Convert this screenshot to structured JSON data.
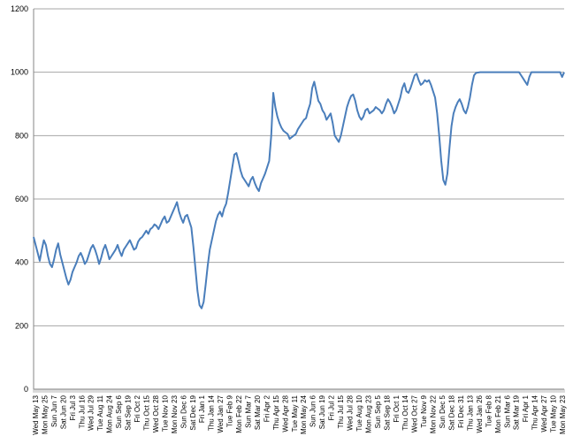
{
  "chart_data": {
    "type": "line",
    "title": "",
    "xlabel": "",
    "ylabel": "",
    "ylim": [
      0,
      1200
    ],
    "y_ticks": [
      0,
      200,
      400,
      600,
      800,
      1000,
      1200
    ],
    "grid": true,
    "legend": "none",
    "colors": {
      "line": "#4A7EBB",
      "grid": "#A6A6A6",
      "axis": "#868686"
    },
    "x_tick_labels": [
      "Wed May 13",
      "Mon May 25",
      "Sun Jun 7",
      "Sat Jun 20",
      "Fri Jul 3",
      "Thu Jul 16",
      "Wed Jul 29",
      "Tue Aug 11",
      "Mon Aug 24",
      "Sun Sep 6",
      "Sat Sep 19",
      "Fri Oct 2",
      "Thu Oct 15",
      "Wed Oct 28",
      "Tue Nov 10",
      "Mon Nov 23",
      "Sun Dec 6",
      "Sat Dec 19",
      "Fri Jan 1",
      "Thu Jan 14",
      "Wed Jan 27",
      "Tue Feb 9",
      "Mon Feb 22",
      "Sun Mar 7",
      "Sat Mar 20",
      "Fri Apr 2",
      "Thu Apr 15",
      "Wed Apr 28",
      "Tue May 11",
      "Mon May 24",
      "Sun Jun 6",
      "Sat Jun 19",
      "Fri Jul 2",
      "Thu Jul 15",
      "Wed Jul 28",
      "Tue Aug 10",
      "Mon Aug 23",
      "Sun Sep 5",
      "Sat Sep 18",
      "Fri Oct 1",
      "Thu Oct 14",
      "Wed Oct 27",
      "Tue Nov 9",
      "Mon Nov 22",
      "Sun Dec 5",
      "Sat Dec 18",
      "Fri Dec 31",
      "Thu Jan 13",
      "Wed Jan 26",
      "Tue Feb 8",
      "Mon Feb 21",
      "Sun Mar 6",
      "Sat Mar 19",
      "Fri Apr 1",
      "Thu Apr 14",
      "Wed Apr 27",
      "Tue May 10",
      "Mon May 23"
    ],
    "series": [
      {
        "values": [
          480,
          455,
          430,
          405,
          440,
          470,
          455,
          420,
          395,
          385,
          410,
          440,
          460,
          425,
          400,
          375,
          350,
          330,
          345,
          370,
          385,
          400,
          420,
          430,
          415,
          395,
          405,
          425,
          445,
          455,
          440,
          420,
          395,
          415,
          440,
          455,
          435,
          410,
          420,
          430,
          440,
          455,
          435,
          420,
          440,
          450,
          460,
          470,
          455,
          440,
          445,
          465,
          475,
          480,
          490,
          500,
          490,
          505,
          510,
          520,
          515,
          505,
          520,
          535,
          545,
          525,
          530,
          545,
          560,
          575,
          590,
          560,
          540,
          525,
          545,
          550,
          530,
          510,
          450,
          380,
          310,
          265,
          255,
          275,
          330,
          390,
          440,
          470,
          500,
          530,
          550,
          560,
          545,
          570,
          585,
          620,
          660,
          700,
          740,
          745,
          720,
          690,
          670,
          660,
          650,
          640,
          660,
          670,
          650,
          635,
          625,
          650,
          665,
          680,
          700,
          720,
          800,
          935,
          890,
          860,
          840,
          825,
          815,
          810,
          805,
          790,
          795,
          800,
          805,
          820,
          830,
          840,
          850,
          855,
          880,
          900,
          950,
          970,
          940,
          910,
          900,
          880,
          870,
          850,
          860,
          870,
          840,
          800,
          790,
          780,
          800,
          830,
          860,
          890,
          910,
          925,
          930,
          910,
          880,
          860,
          850,
          860,
          880,
          885,
          870,
          875,
          880,
          890,
          885,
          880,
          870,
          880,
          900,
          915,
          905,
          890,
          870,
          880,
          900,
          920,
          950,
          965,
          940,
          935,
          950,
          970,
          990,
          995,
          975,
          960,
          965,
          975,
          970,
          975,
          960,
          940,
          920,
          870,
          800,
          720,
          660,
          645,
          680,
          760,
          830,
          870,
          890,
          905,
          915,
          900,
          880,
          870,
          890,
          920,
          960,
          990,
          998,
          999,
          1000,
          1000,
          1000,
          1000,
          1000,
          1000,
          1000,
          1000,
          1000,
          1000,
          1000,
          1000,
          1000,
          1000,
          1000,
          1000,
          1000,
          1000,
          1000,
          1000,
          990,
          980,
          970,
          960,
          985,
          1000,
          1000,
          1000,
          1000,
          1000,
          1000,
          1000,
          1000,
          1000,
          1000,
          1000,
          1000,
          1000,
          1000,
          1000,
          985,
          1000
        ]
      }
    ]
  }
}
